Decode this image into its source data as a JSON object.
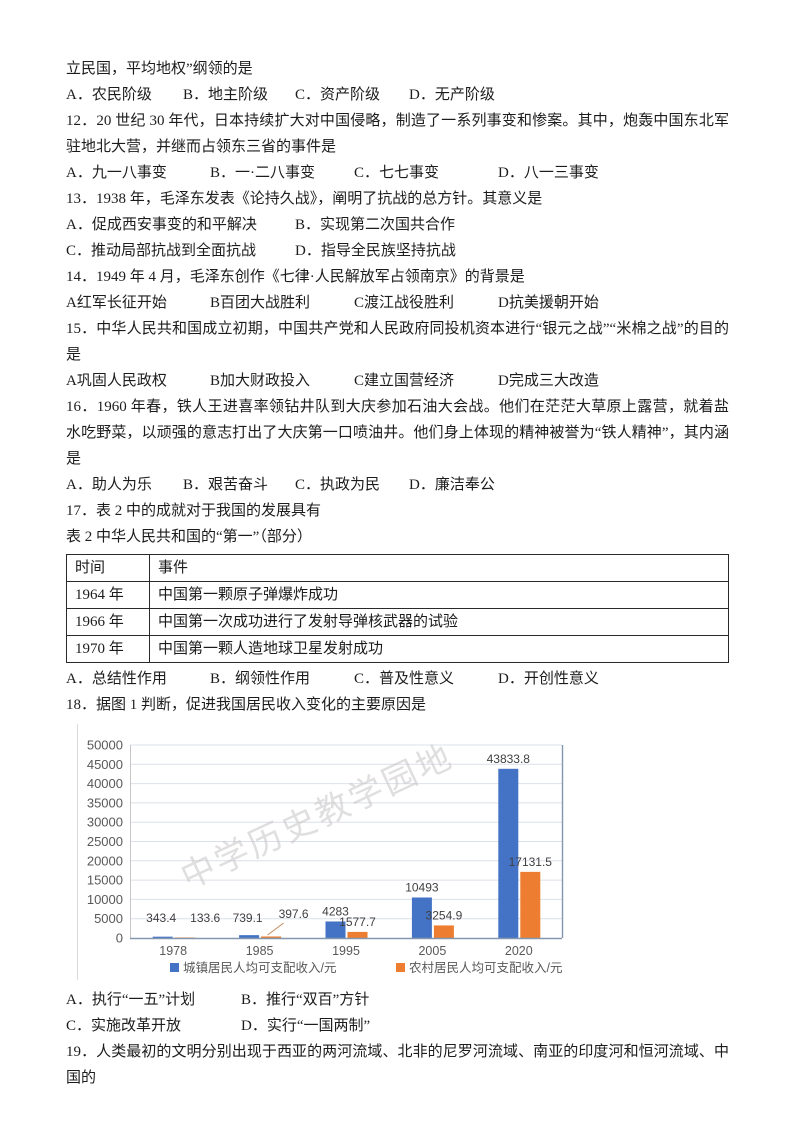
{
  "document": {
    "blocks": [
      {
        "type": "para",
        "name": "question-11-text",
        "text": "立民国，平均地权”纲领的是"
      },
      {
        "type": "options",
        "style": "row4-narrow",
        "items": [
          "A．农民阶级",
          "B．地主阶级",
          "C．资产阶级",
          "D．无产阶级"
        ]
      },
      {
        "type": "para",
        "name": "question-12-text",
        "text": "12．20 世纪 30 年代，日本持续扩大对中国侵略，制造了一系列事变和惨案。其中，炮轰中国东北军驻地北大营，并继而占领东三省的事件是"
      },
      {
        "type": "options",
        "style": "row4-wide",
        "items": [
          "A．九一八事变",
          "B．一·二八事变",
          "C．七七事变",
          "D．八一三事变"
        ]
      },
      {
        "type": "para",
        "name": "question-13-text",
        "text": "13．1938 年，毛泽东发表《论持久战》，阐明了抗战的总方针。其意义是"
      },
      {
        "type": "options",
        "style": "row2",
        "items": [
          "A．促成西安事变的和平解决",
          "B．实现第二次国共合作"
        ]
      },
      {
        "type": "options",
        "style": "row2",
        "items": [
          "C．推动局部抗战到全面抗战",
          "D．指导全民族坚持抗战"
        ]
      },
      {
        "type": "para",
        "name": "question-14-text",
        "text": "14．1949 年 4 月，毛泽东创作《七律·人民解放军占领南京》的背景是"
      },
      {
        "type": "options",
        "style": "row4-wide",
        "items": [
          "A红军长征开始",
          "B百团大战胜利",
          "C渡江战役胜利",
          "D抗美援朝开始"
        ]
      },
      {
        "type": "para",
        "name": "question-15-text",
        "text": "15．中华人民共和国成立初期，中国共产党和人民政府同投机资本进行“银元之战”“米棉之战”的目的是"
      },
      {
        "type": "options",
        "style": "row4-wide",
        "items": [
          "A巩固人民政权",
          "B加大财政投入",
          "C建立国营经济",
          "D完成三大改造"
        ]
      },
      {
        "type": "para",
        "name": "question-16-text",
        "text": "16．1960 年春，铁人王进喜率领钻井队到大庆参加石油大会战。他们在茫茫大草原上露营，就着盐水吃野菜，以顽强的意志打出了大庆第一口喷油井。他们身上体现的精神被誉为“铁人精神”，其内涵是"
      },
      {
        "type": "options",
        "style": "row4-narrow",
        "items": [
          "A．助人为乐",
          "B．艰苦奋斗",
          "C．执政为民",
          "D．廉洁奉公"
        ]
      },
      {
        "type": "para",
        "name": "question-17-text",
        "text": "17．表 2 中的成就对于我国的发展具有"
      },
      {
        "type": "para",
        "name": "table-2-caption",
        "text": "表 2 中华人民共和国的“第一”（部分）"
      },
      {
        "type": "table",
        "ref": "table2"
      },
      {
        "type": "options",
        "style": "row4-wide",
        "items": [
          "A．总结性作用",
          "B．纲领性作用",
          "C．普及性意义",
          "D．开创性意义"
        ]
      },
      {
        "type": "para",
        "name": "question-18-text",
        "text": "18．据图 1 判断，促进我国居民收入变化的主要原因是"
      },
      {
        "type": "chart",
        "ref": "chart_data"
      },
      {
        "type": "options",
        "style": "row2-narrow",
        "items": [
          "A．执行“一五”计划",
          "B．推行“双百”方针"
        ]
      },
      {
        "type": "options",
        "style": "row2-narrow",
        "items": [
          "C．实施改革开放",
          "D．实行“一国两制”"
        ]
      },
      {
        "type": "para",
        "name": "question-19-text",
        "text": "19．人类最初的文明分别出现于西亚的两河流域、北非的尼罗河流域、南亚的印度河和恒河流域、中国的"
      }
    ]
  },
  "table2": {
    "headers": [
      "时间",
      "事件"
    ],
    "rows": [
      [
        "1964 年",
        "中国第一颗原子弹爆炸成功"
      ],
      [
        "1966 年",
        "中国第一次成功进行了发射导弹核武器的试验"
      ],
      [
        "1970 年",
        "中国第一颗人造地球卫星发射成功"
      ]
    ]
  },
  "chart_data": {
    "type": "bar",
    "categories": [
      "1978",
      "1985",
      "1995",
      "2005",
      "2020"
    ],
    "series": [
      {
        "name": "城镇居民人均可支配收入/元",
        "color": "#4472c4",
        "values": [
          343.4,
          739.1,
          4283,
          10493,
          43833.8
        ]
      },
      {
        "name": "农村居民人均可支配收入/元",
        "color": "#ed7d31",
        "values": [
          133.6,
          397.6,
          1577.7,
          3254.9,
          17131.5
        ]
      }
    ],
    "title": "",
    "xlabel": "",
    "ylabel": "",
    "ylim": [
      0,
      50000
    ],
    "ytick_step": 5000,
    "yticks": [
      0,
      5000,
      10000,
      15000,
      20000,
      25000,
      30000,
      35000,
      40000,
      45000,
      50000
    ],
    "grid": true,
    "legend_position": "bottom",
    "value_labels": [
      343.4,
      133.6,
      739.1,
      397.6,
      4283,
      1577.7,
      10493,
      3254.9,
      43833.8,
      17131.5
    ],
    "grid_color": "#dbe0e8",
    "axis_color": "#8497b0",
    "tick_label_color": "#595959",
    "value_label_color": "#3f3f3f",
    "watermark": "中学历史教学园地"
  }
}
